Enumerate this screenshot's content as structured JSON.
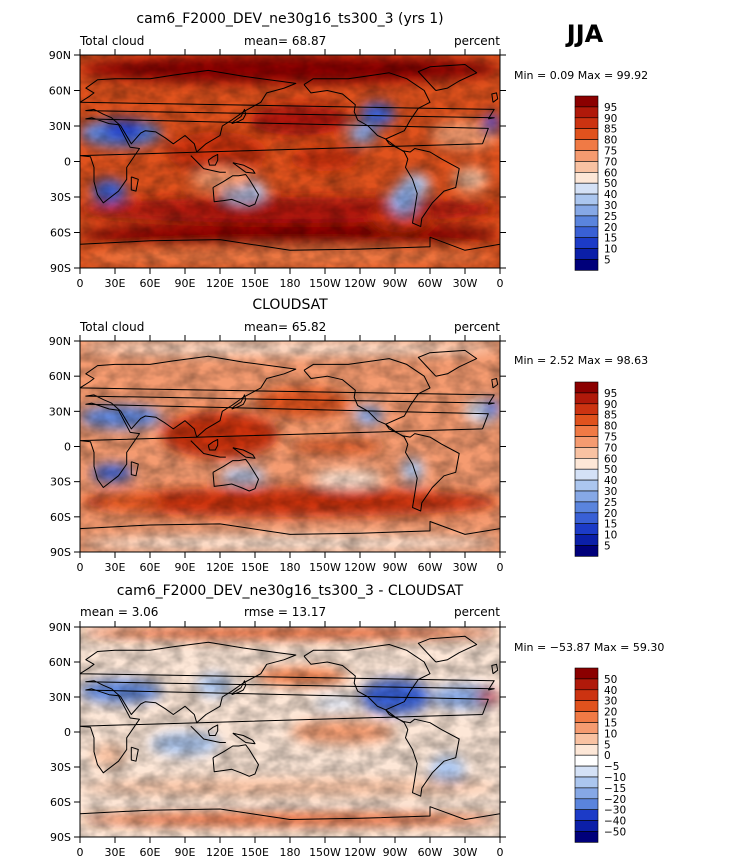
{
  "season": "JJA",
  "chart_data": [
    {
      "type": "heatmap",
      "title": "cam6_F2000_DEV_ne30g16_ts300_3 (yrs 1)",
      "left_label": "Total cloud",
      "center_label": "mean=  68.87",
      "right_label": "percent",
      "stats": "Min =   0.09 Max =  99.92",
      "min": 0.09,
      "max": 99.92,
      "mean": 68.87,
      "xticks": [
        "0",
        "30E",
        "60E",
        "90E",
        "120E",
        "150E",
        "180",
        "150W",
        "120W",
        "90W",
        "60W",
        "30W",
        "0"
      ],
      "yticks": [
        "90N",
        "60N",
        "30N",
        "0",
        "30S",
        "60S",
        "90S"
      ],
      "xlim": [
        0,
        360
      ],
      "ylim": [
        -90,
        90
      ],
      "colorbar_labels": [
        "95",
        "90",
        "85",
        "80",
        "75",
        "70",
        "60",
        "50",
        "40",
        "30",
        "25",
        "20",
        "15",
        "10",
        "5"
      ],
      "colorbar_colors": [
        "#8b0000",
        "#b0190a",
        "#cc3311",
        "#e0521d",
        "#f07a45",
        "#f59b70",
        "#f9c2a2",
        "#fde7d7",
        "#d4e1f6",
        "#abc6ef",
        "#86a8e6",
        "#5a84dd",
        "#3960d5",
        "#1c3bc7",
        "#0b1fa8",
        "#00007a"
      ]
    },
    {
      "type": "heatmap",
      "title": "CLOUDSAT",
      "left_label": "Total cloud",
      "center_label": "mean=  65.82",
      "right_label": "percent",
      "stats": "Min =   2.52 Max =  98.63",
      "min": 2.52,
      "max": 98.63,
      "mean": 65.82,
      "xticks": [
        "0",
        "30E",
        "60E",
        "90E",
        "120E",
        "150E",
        "180",
        "150W",
        "120W",
        "90W",
        "60W",
        "30W",
        "0"
      ],
      "yticks": [
        "90N",
        "60N",
        "30N",
        "0",
        "30S",
        "60S",
        "90S"
      ],
      "xlim": [
        0,
        360
      ],
      "ylim": [
        -90,
        90
      ],
      "colorbar_labels": [
        "95",
        "90",
        "85",
        "80",
        "75",
        "70",
        "60",
        "50",
        "40",
        "30",
        "25",
        "20",
        "15",
        "10",
        "5"
      ],
      "colorbar_colors": [
        "#8b0000",
        "#b0190a",
        "#cc3311",
        "#e0521d",
        "#f07a45",
        "#f59b70",
        "#f9c2a2",
        "#fde7d7",
        "#d4e1f6",
        "#abc6ef",
        "#86a8e6",
        "#5a84dd",
        "#3960d5",
        "#1c3bc7",
        "#0b1fa8",
        "#00007a"
      ]
    },
    {
      "type": "heatmap",
      "title": "cam6_F2000_DEV_ne30g16_ts300_3 - CLOUDSAT",
      "left_label": "mean =   3.06",
      "center_label": "rmse =  13.17",
      "right_label": "percent",
      "stats": "Min = −53.87 Max =  59.30",
      "min": -53.87,
      "max": 59.3,
      "mean": 3.06,
      "rmse": 13.17,
      "xticks": [
        "0",
        "30E",
        "60E",
        "90E",
        "120E",
        "150E",
        "180",
        "150W",
        "120W",
        "90W",
        "60W",
        "30W",
        "0"
      ],
      "yticks": [
        "90N",
        "60N",
        "30N",
        "0",
        "30S",
        "60S",
        "90S"
      ],
      "xlim": [
        0,
        360
      ],
      "ylim": [
        -90,
        90
      ],
      "colorbar_labels": [
        "50",
        "40",
        "30",
        "20",
        "15",
        "10",
        "5",
        "0",
        "−5",
        "−10",
        "−15",
        "−20",
        "−30",
        "−40",
        "−50"
      ],
      "colorbar_colors": [
        "#8b0000",
        "#b0190a",
        "#cc3311",
        "#e0521d",
        "#f07a45",
        "#f59b70",
        "#f9c2a2",
        "#fde7d7",
        "#ffffff",
        "#d4e1f6",
        "#abc6ef",
        "#86a8e6",
        "#5a84dd",
        "#1c3bc7",
        "#0b1fa8",
        "#00007a"
      ]
    }
  ]
}
